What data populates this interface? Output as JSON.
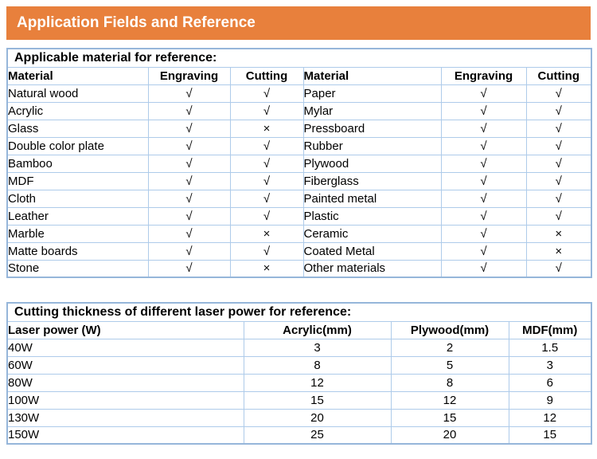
{
  "banner": {
    "title": "Application Fields and Reference"
  },
  "colors": {
    "banner_bg": "#E8803C",
    "banner_text": "#FFFFFF",
    "table_outer_border": "#96B6DA",
    "table_grid": "#AECBEA",
    "text": "#000000",
    "page_bg": "#FFFFFF"
  },
  "symbols": {
    "check": "√",
    "cross": "×"
  },
  "materials_table": {
    "title": "Applicable material for reference:",
    "columns": [
      "Material",
      "Engraving",
      "Cutting",
      "Material",
      "Engraving",
      "Cutting"
    ],
    "rows": [
      [
        "Natural wood",
        "√",
        "√",
        "Paper",
        "√",
        "√"
      ],
      [
        "Acrylic",
        "√",
        "√",
        "Mylar",
        "√",
        "√"
      ],
      [
        "Glass",
        "√",
        "×",
        "Pressboard",
        "√",
        "√"
      ],
      [
        "Double color plate",
        "√",
        "√",
        "Rubber",
        "√",
        "√"
      ],
      [
        "Bamboo",
        "√",
        "√",
        "Plywood",
        "√",
        "√"
      ],
      [
        "MDF",
        "√",
        "√",
        "Fiberglass",
        "√",
        "√"
      ],
      [
        "Cloth",
        "√",
        "√",
        "Painted metal",
        "√",
        "√"
      ],
      [
        "Leather",
        "√",
        "√",
        "Plastic",
        "√",
        "√"
      ],
      [
        "Marble",
        "√",
        "×",
        "Ceramic",
        "√",
        "×"
      ],
      [
        "Matte boards",
        "√",
        "√",
        "Coated Metal",
        "√",
        "×"
      ],
      [
        "Stone",
        "√",
        "×",
        "Other materials",
        "√",
        "√"
      ]
    ]
  },
  "thickness_table": {
    "title": "Cutting thickness of different laser power for reference:",
    "columns": [
      "Laser power (W)",
      "Acrylic(mm)",
      "Plywood(mm)",
      "MDF(mm)"
    ],
    "rows": [
      [
        "40W",
        "3",
        "2",
        "1.5"
      ],
      [
        "60W",
        "8",
        "5",
        "3"
      ],
      [
        "80W",
        "12",
        "8",
        "6"
      ],
      [
        "100W",
        "15",
        "12",
        "9"
      ],
      [
        "130W",
        "20",
        "15",
        "12"
      ],
      [
        "150W",
        "25",
        "20",
        "15"
      ]
    ]
  }
}
